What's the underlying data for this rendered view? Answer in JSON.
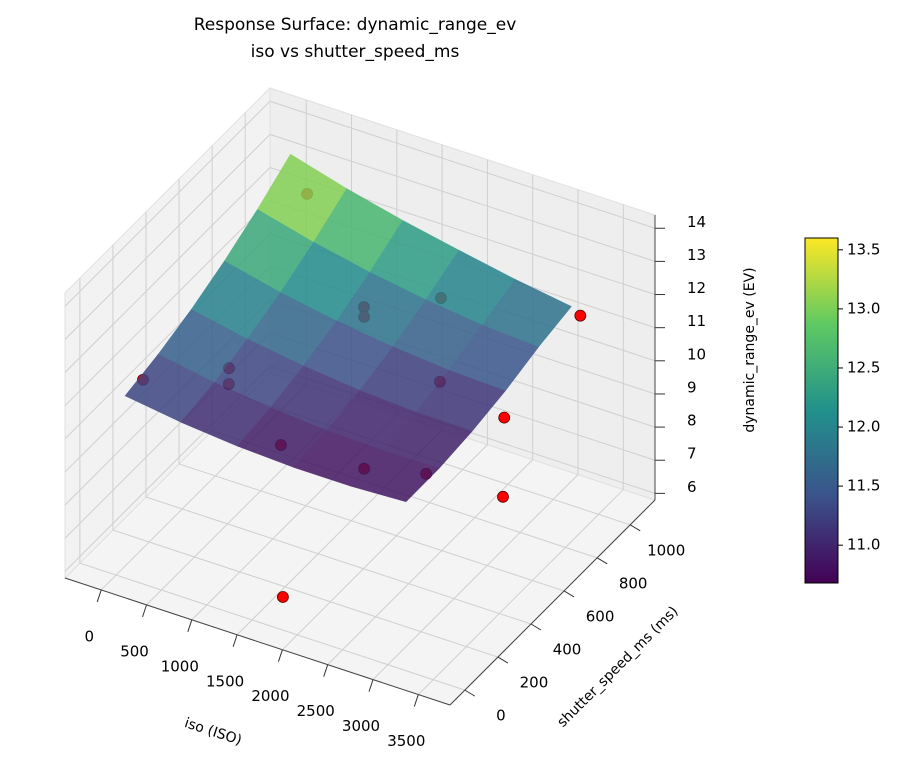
{
  "chart_data": {
    "type": "surface3d",
    "title": "Response Surface: dynamic_range_ev",
    "subtitle": "iso vs shutter_speed_ms",
    "x_label": "iso (ISO)",
    "y_label": "shutter_speed_ms (ms)",
    "z_label": "dynamic_range_ev (EV)",
    "xlim": [
      -400,
      3850
    ],
    "ylim": [
      -90,
      1150
    ],
    "zlim": [
      5.8,
      14.4
    ],
    "xticks": [
      0,
      500,
      1000,
      1500,
      2000,
      2500,
      3000,
      3500
    ],
    "yticks": [
      0,
      200,
      400,
      600,
      800,
      1000
    ],
    "zticks": [
      6,
      7,
      8,
      9,
      10,
      11,
      12,
      13,
      14
    ],
    "grid": true,
    "surface": {
      "colormap": "viridis",
      "opacity": 0.85,
      "x": [
        100,
        720,
        1340,
        1960,
        2580,
        3200
      ],
      "y": [
        0,
        200,
        400,
        600,
        800,
        1000
      ],
      "z": [
        [
          11.3,
          11.06,
          10.9,
          10.82,
          10.82,
          10.9
        ],
        [
          11.55,
          11.26,
          11.06,
          10.93,
          10.88,
          10.91
        ],
        [
          11.91,
          11.57,
          11.32,
          11.14,
          11.04,
          11.03
        ],
        [
          12.37,
          11.98,
          11.68,
          11.46,
          11.31,
          11.25
        ],
        [
          12.93,
          12.5,
          12.15,
          11.88,
          11.68,
          11.57
        ],
        [
          13.6,
          13.12,
          12.72,
          12.38,
          12.06,
          11.8
        ]
      ]
    },
    "points": {
      "color": "#ff0000",
      "x": [
        484,
        1538,
        1593,
        2103,
        3378,
        198,
        870,
        918,
        2596,
        3235,
        1692,
        2551,
        3136,
        3442,
        1759
      ],
      "y": [
        890,
        656,
        627,
        813,
        957,
        54,
        206,
        179,
        536,
        575,
        70,
        102,
        157,
        454,
        45
      ],
      "z": [
        13.3,
        12.0,
        11.9,
        12.0,
        11.9,
        11.6,
        11.8,
        11.5,
        11.3,
        10.6,
        10.9,
        10.8,
        10.9,
        9.0,
        6.5
      ]
    },
    "colorbar": {
      "lim": [
        10.68,
        13.6
      ],
      "ticks": [
        {
          "value": 11,
          "label": "11.0"
        },
        11.5,
        {
          "value": 12,
          "label": "12.0"
        },
        12.5,
        {
          "value": 13,
          "label": "13.0"
        },
        13.5
      ]
    }
  }
}
